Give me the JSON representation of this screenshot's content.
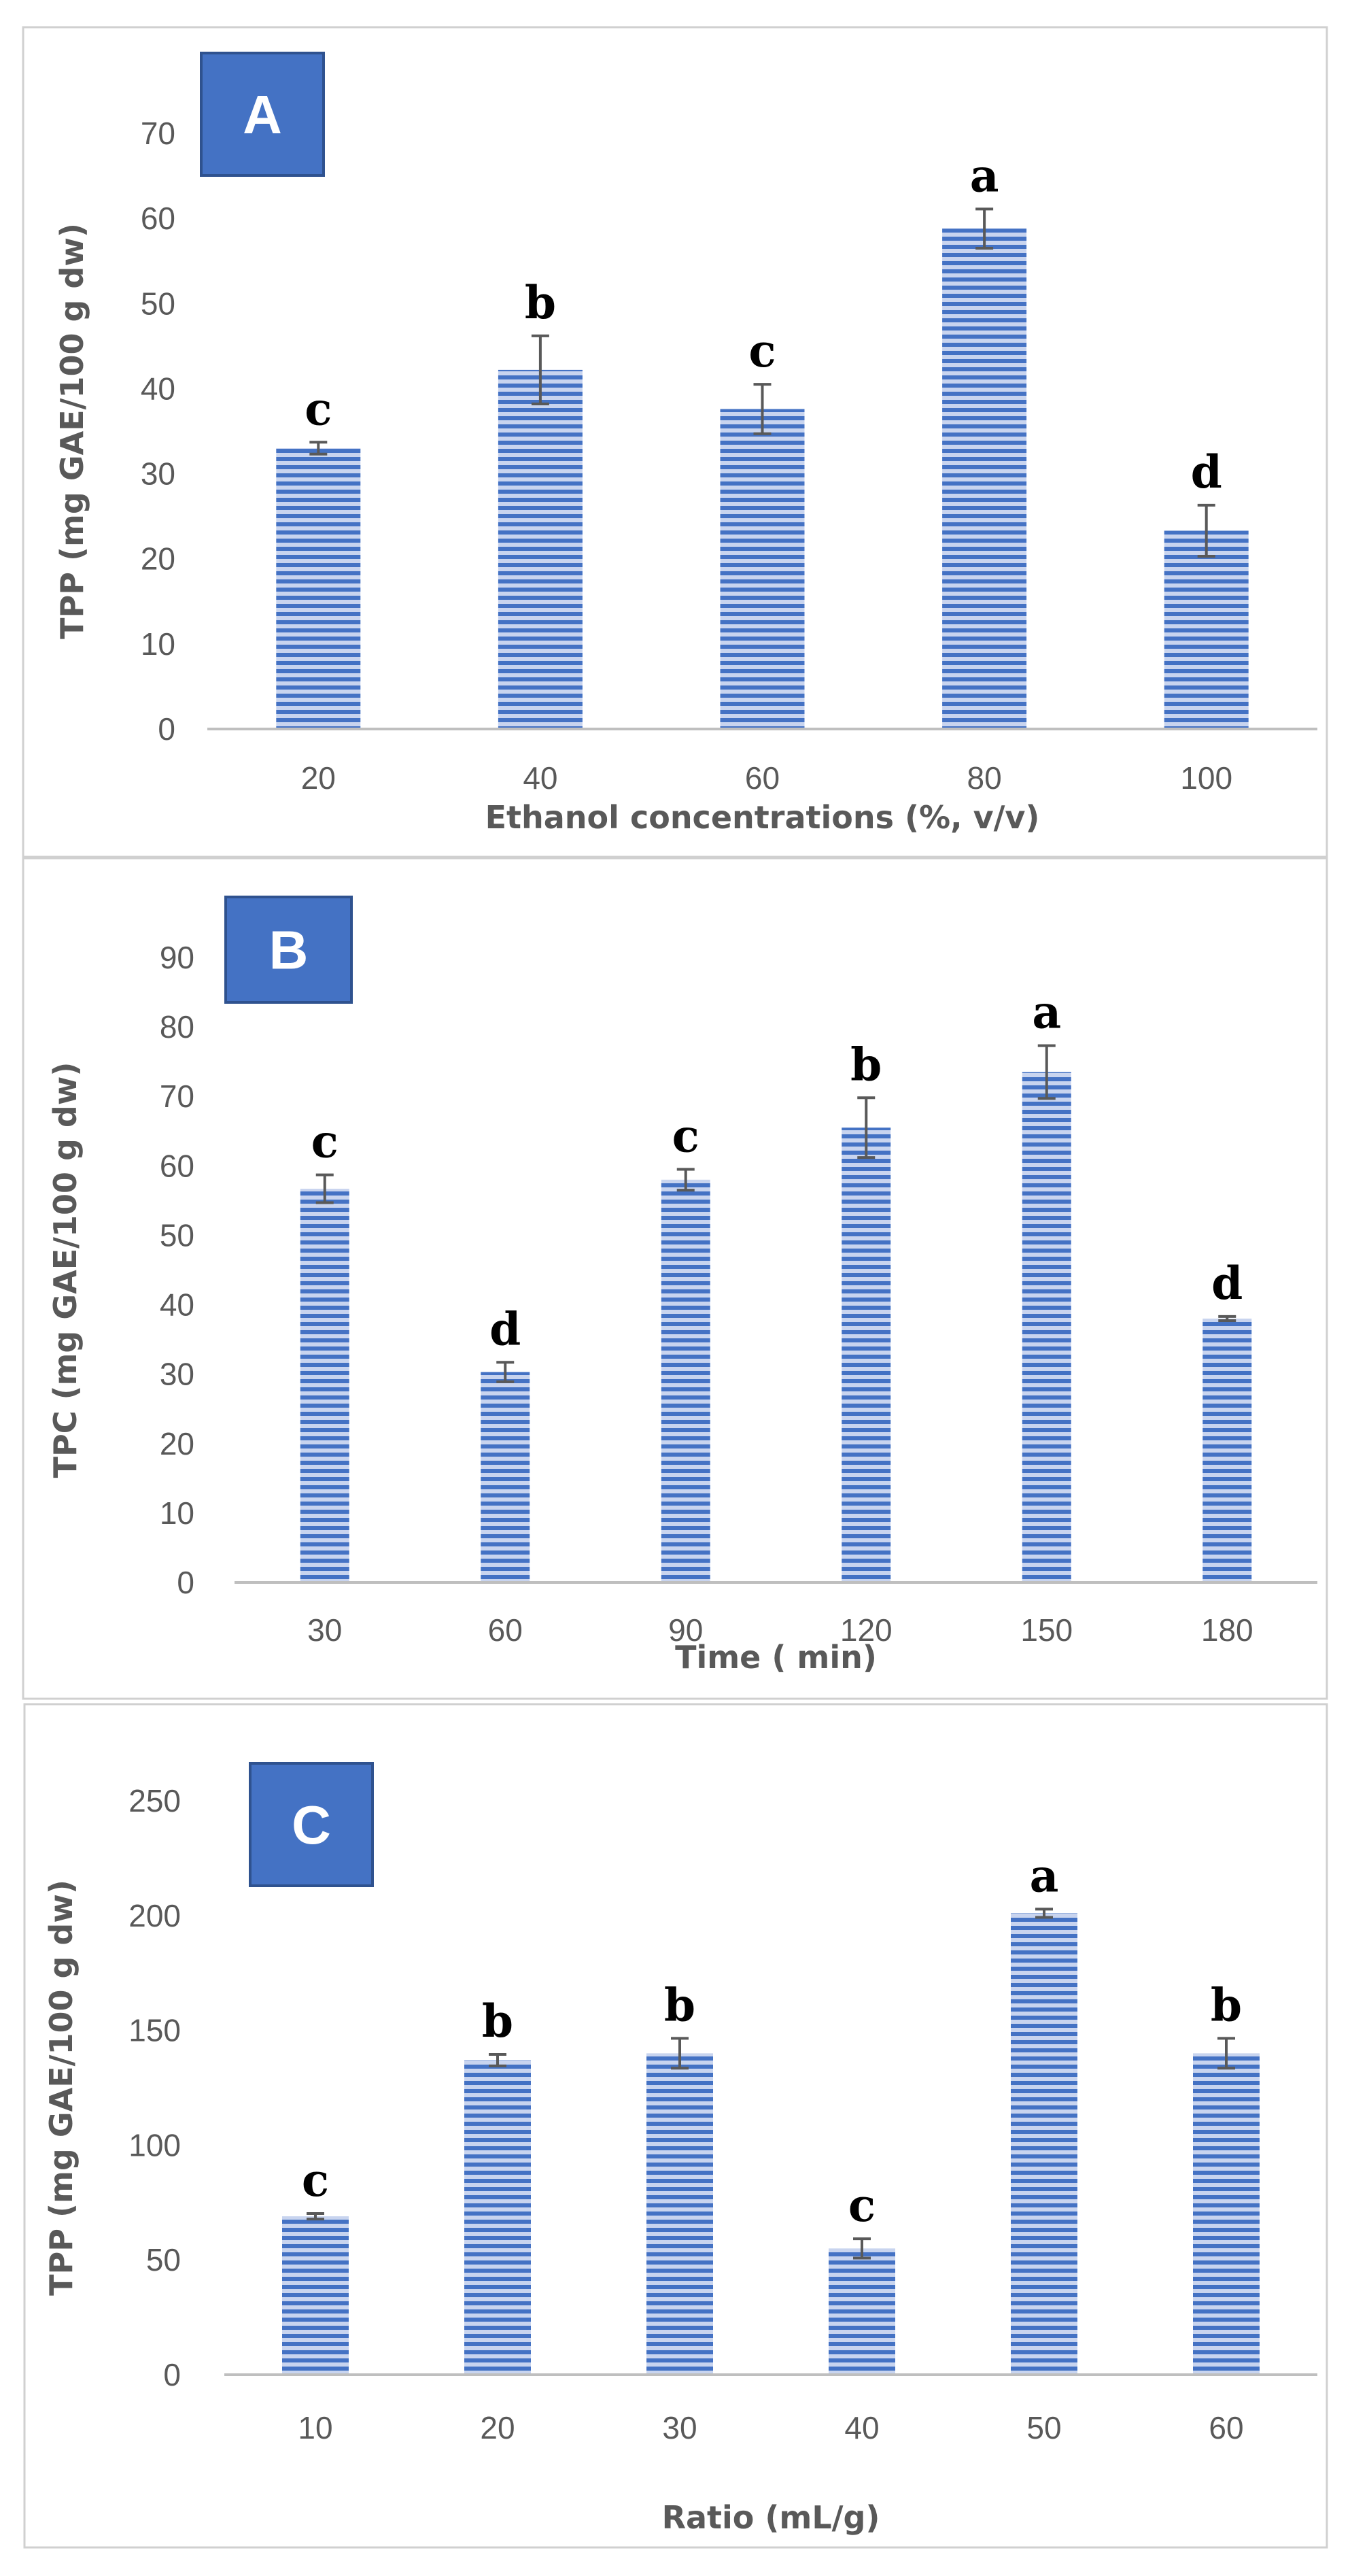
{
  "colors": {
    "bar_fill": "#c8d4ef",
    "bar_stripe": "#4472c4",
    "label_box_fill": "#4472c4",
    "label_box_border": "#2f528f",
    "axis_line": "#bfbfbf",
    "error_bar": "#595959",
    "panel_border": "#d0d0d0"
  },
  "chart_data": [
    {
      "type": "bar",
      "panel_label": "A",
      "categories": [
        "20",
        "40",
        "60",
        "80",
        "100"
      ],
      "values": [
        33,
        42.2,
        37.6,
        58.8,
        23.3
      ],
      "errors": [
        0.7,
        4,
        2.9,
        2.3,
        3
      ],
      "letters": [
        "c",
        "b",
        "c",
        "a",
        "d"
      ],
      "xlabel": "Ethanol concentrations (%, v/v)",
      "ylabel": "TPP (mg GAE/100 g dw)",
      "ylim": [
        0,
        70
      ],
      "yticks": [
        0,
        10,
        20,
        30,
        40,
        50,
        60,
        70
      ],
      "grid": false,
      "legend": "none"
    },
    {
      "type": "bar",
      "panel_label": "B",
      "categories": [
        "30",
        "60",
        "90",
        "120",
        "150",
        "180"
      ],
      "values": [
        56.7,
        30.3,
        58,
        65.5,
        73.5,
        38
      ],
      "errors": [
        2,
        1.4,
        1.5,
        4.3,
        3.8,
        0.3
      ],
      "letters": [
        "c",
        "d",
        "c",
        "b",
        "a",
        "d"
      ],
      "xlabel": "Time ( min)",
      "ylabel": "TPC (mg GAE/100 g dw)",
      "ylim": [
        0,
        90
      ],
      "yticks": [
        0,
        10,
        20,
        30,
        40,
        50,
        60,
        70,
        80,
        90
      ],
      "grid": false,
      "legend": "none"
    },
    {
      "type": "bar",
      "panel_label": "C",
      "categories": [
        "10",
        "20",
        "30",
        "40",
        "50",
        "60"
      ],
      "values": [
        69,
        137,
        140,
        55,
        201,
        140
      ],
      "errors": [
        1.2,
        2.5,
        6.5,
        4.2,
        1.8,
        6.5
      ],
      "letters": [
        "c",
        "b",
        "b",
        "c",
        "a",
        "b"
      ],
      "xlabel": "Ratio (mL/g)",
      "ylabel": "TPP (mg GAE/100 g dw)",
      "ylim": [
        0,
        250
      ],
      "yticks": [
        0,
        50,
        100,
        150,
        200,
        250
      ],
      "grid": false,
      "legend": "none"
    }
  ]
}
